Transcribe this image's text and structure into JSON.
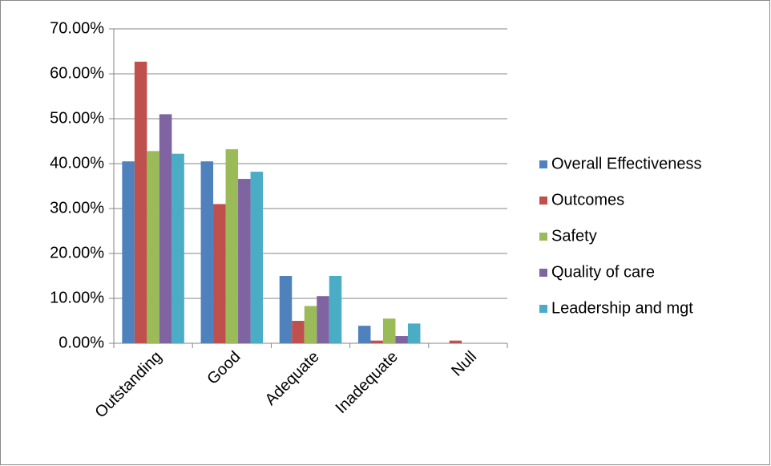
{
  "chart_data": {
    "type": "bar",
    "categories": [
      "Outstanding",
      "Good",
      "Adequate",
      "Inadequate",
      "Null"
    ],
    "series": [
      {
        "name": "Overall Effectiveness",
        "color": "#4f81bd",
        "values": [
          40.5,
          40.5,
          15.0,
          3.9,
          0
        ]
      },
      {
        "name": "Outcomes",
        "color": "#c0504d",
        "values": [
          62.7,
          31.0,
          5.0,
          0.6,
          0.6
        ]
      },
      {
        "name": "Safety",
        "color": "#9bbb59",
        "values": [
          42.8,
          43.2,
          8.3,
          5.5,
          0
        ]
      },
      {
        "name": "Quality of care",
        "color": "#8064a2",
        "values": [
          51.0,
          36.6,
          10.5,
          1.6,
          0
        ]
      },
      {
        "name": "Leadership and mgt",
        "color": "#4bacc6",
        "values": [
          42.2,
          38.2,
          15.0,
          4.4,
          0
        ]
      }
    ],
    "ylim": [
      0,
      70
    ],
    "yticks": [
      {
        "value": 0,
        "label": "0.00%"
      },
      {
        "value": 10,
        "label": "10.00%"
      },
      {
        "value": 20,
        "label": "20.00%"
      },
      {
        "value": 30,
        "label": "30.00%"
      },
      {
        "value": 40,
        "label": "40.00%"
      },
      {
        "value": 50,
        "label": "50.00%"
      },
      {
        "value": 60,
        "label": "60.00%"
      },
      {
        "value": 70,
        "label": "70.00%"
      }
    ],
    "grid": true,
    "legend": "right"
  }
}
